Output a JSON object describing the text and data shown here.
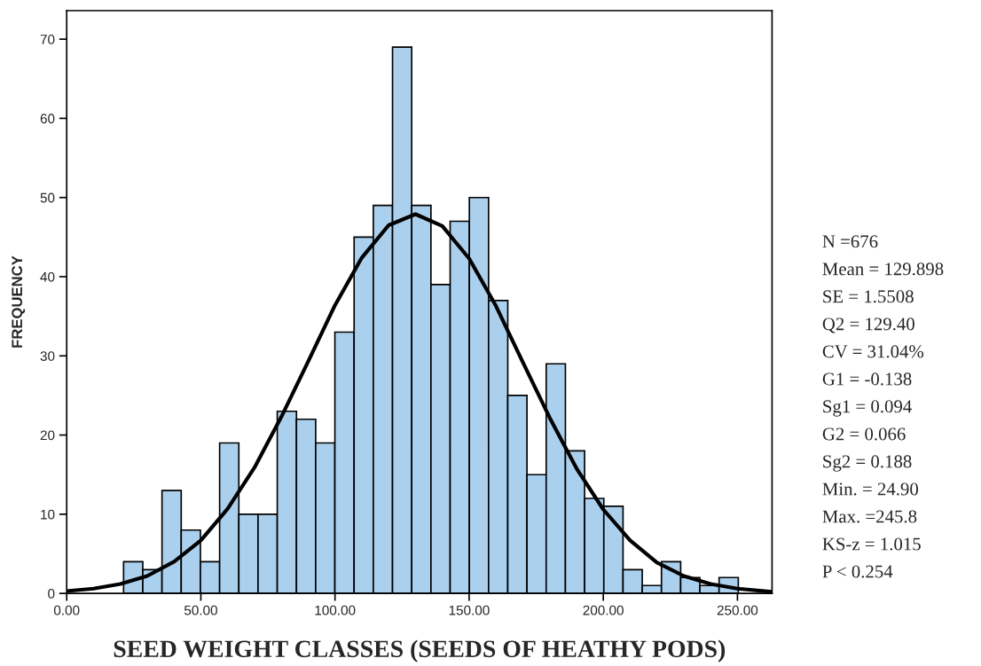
{
  "chart_data": {
    "type": "histogram",
    "xlabel": "SEED WEIGHT CLASSES (SEEDS OF HEATHY PODS)",
    "ylabel": "FREQUENCY",
    "bins": [
      21.2,
      28.36,
      35.52,
      42.68,
      49.84,
      57.0,
      64.16,
      71.32,
      78.48,
      85.64,
      92.8,
      99.96,
      107.12,
      114.28,
      121.44,
      128.6,
      135.76,
      142.92,
      150.08,
      157.24,
      164.4,
      171.56,
      178.72,
      185.88,
      193.04,
      200.2,
      207.36,
      214.52,
      221.68,
      228.84,
      236.0,
      243.16,
      250.32
    ],
    "values": [
      4,
      3,
      13,
      8,
      4,
      19,
      10,
      10,
      23,
      22,
      19,
      33,
      45,
      49,
      69,
      49,
      39,
      47,
      50,
      37,
      25,
      15,
      29,
      18,
      12,
      11,
      3,
      1,
      4,
      2,
      1,
      2
    ],
    "color": "#abd0ee",
    "series": [
      {
        "type": "line",
        "color": "#000000",
        "x": [
          0,
          10,
          20,
          30,
          40,
          50,
          60,
          70,
          80,
          90,
          100,
          110,
          120,
          130,
          140,
          150,
          160,
          170,
          180,
          190,
          200,
          210,
          220,
          230,
          240,
          250,
          262.9
        ],
        "values": [
          0.3,
          0.6,
          1.2,
          2.2,
          4.0,
          6.7,
          10.7,
          15.9,
          22.3,
          29.3,
          36.4,
          42.4,
          46.5,
          47.9,
          46.4,
          42.3,
          36.3,
          29.2,
          22.2,
          15.8,
          10.6,
          6.7,
          3.9,
          2.2,
          1.2,
          0.6,
          0.2
        ]
      }
    ],
    "xlim": [
      0,
      262.9
    ],
    "ylim": [
      0,
      73.6
    ],
    "xticks": [
      {
        "value": 0,
        "label": "0.00"
      },
      {
        "value": 50,
        "label": "50.00"
      },
      {
        "value": 100,
        "label": "100.00"
      },
      {
        "value": 150,
        "label": "150.00"
      },
      {
        "value": 200,
        "label": "200.00"
      },
      {
        "value": 250,
        "label": "250.00"
      }
    ],
    "yticks": [
      0,
      10,
      20,
      30,
      40,
      50,
      60,
      70
    ],
    "grid": false,
    "annotations": [
      "N =676",
      "Mean = 129.898",
      "SE = 1.5508",
      "Q2 = 129.40",
      "CV = 31.04%",
      "G1 = -0.138",
      "Sg1 = 0.094",
      "G2 = 0.066",
      "Sg2 = 0.188",
      "Min. = 24.90",
      "Max. =245.8",
      "KS-z = 1.015",
      "P < 0.254"
    ]
  }
}
